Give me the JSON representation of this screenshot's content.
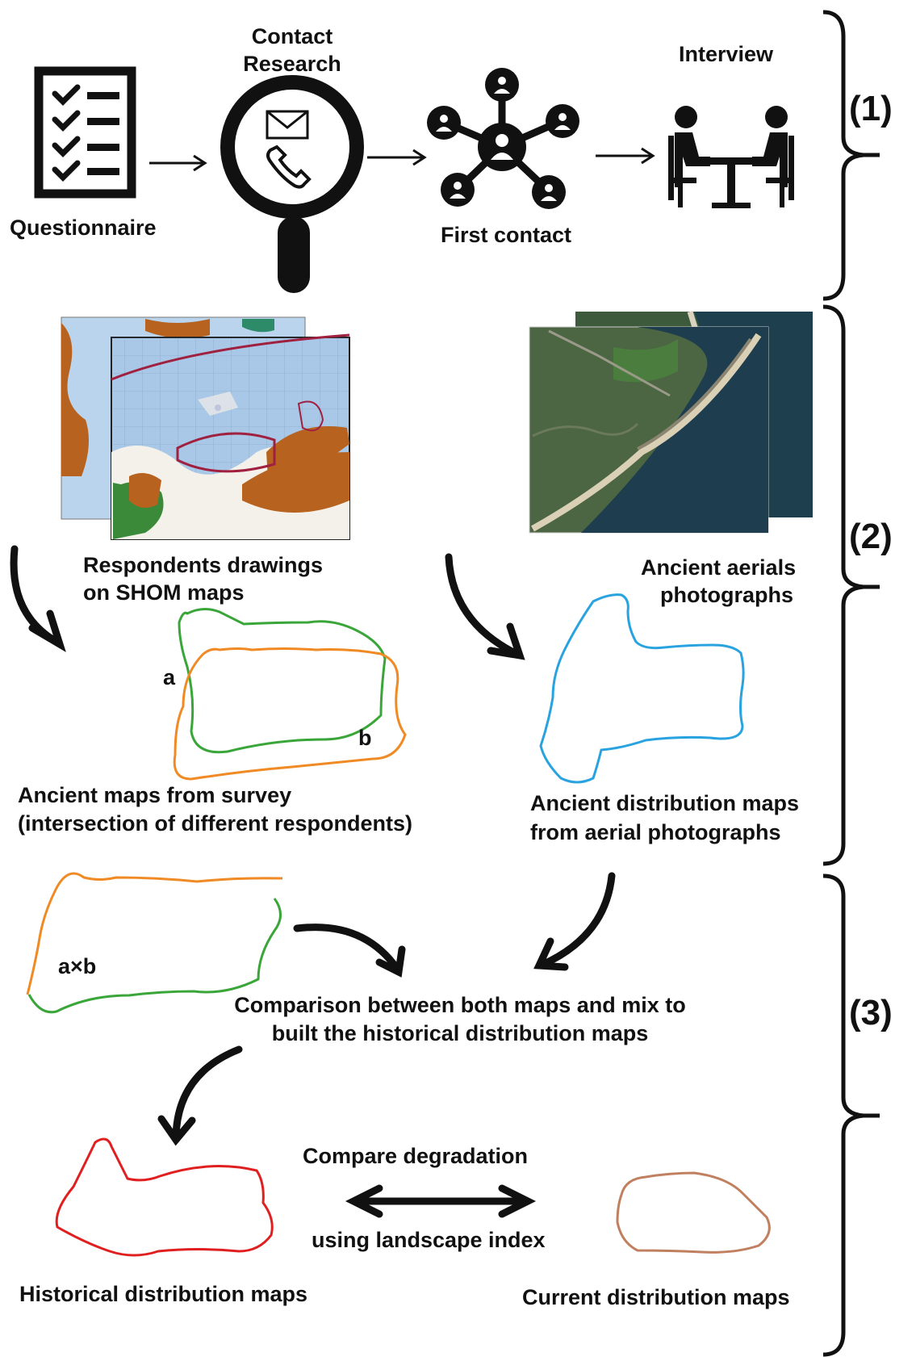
{
  "stages": [
    "(1)",
    "(2)",
    "(3)"
  ],
  "step1": {
    "questionnaire": "Questionnaire",
    "contact_research_line1": "Contact",
    "contact_research_line2": "Research",
    "first_contact": "First contact",
    "interview": "Interview"
  },
  "step2": {
    "shom_line1": "Respondents drawings",
    "shom_line2": "on SHOM maps",
    "aerial_line1": "Ancient aerials",
    "aerial_line2": "photographs",
    "polygon_a": "a",
    "polygon_b": "b",
    "survey_line1": "Ancient maps from survey",
    "survey_line2": "(intersection of different respondents)",
    "aerial_map_line1": "Ancient distribution maps",
    "aerial_map_line2": "from aerial photographs"
  },
  "step3": {
    "intersection_label": "a×b",
    "comparison_line1": "Comparison between both maps and mix to",
    "comparison_line2": "built the historical distribution maps",
    "compare_degradation": "Compare degradation",
    "landscape_index": "using landscape index",
    "historical_maps": "Historical distribution maps",
    "current_maps": "Current distribution maps"
  },
  "colors": {
    "respondent_a": "#3aa63a",
    "respondent_b": "#f08a24",
    "aerial_outline": "#29a3e0",
    "historical": "#e02020",
    "current": "#c08060"
  }
}
